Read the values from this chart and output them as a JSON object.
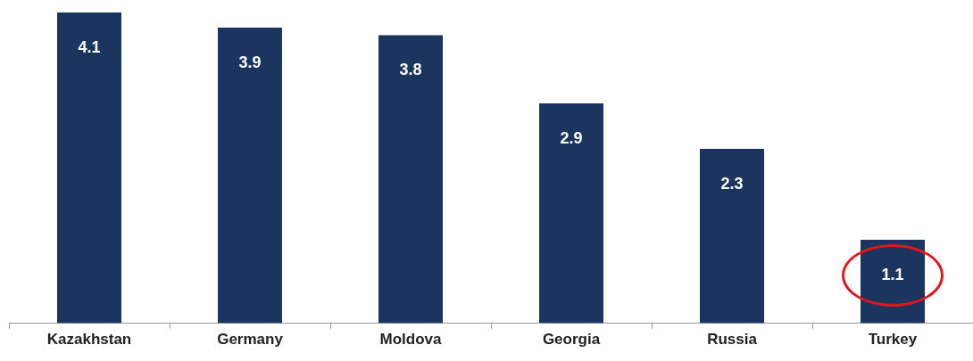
{
  "chart_data": {
    "type": "bar",
    "categories": [
      "Kazakhstan",
      "Germany",
      "Moldova",
      "Georgia",
      "Russia",
      "Turkey"
    ],
    "values": [
      4.1,
      3.9,
      3.8,
      2.9,
      2.3,
      1.1
    ],
    "color": "#1b355f",
    "data_labels": true,
    "grid": false,
    "legend": false
  }
}
